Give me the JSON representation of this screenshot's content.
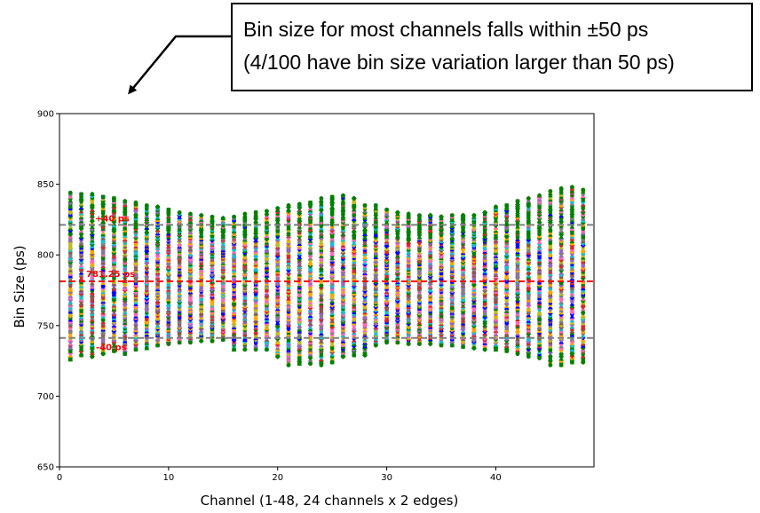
{
  "annotation": {
    "line1": "Bin size for most channels falls within ±50 ps",
    "line2": "(4/100 have bin size variation larger than 50 ps)"
  },
  "chart_data": {
    "type": "scatter",
    "title": "",
    "xlabel": "Channel (1-48, 24 channels x 2 edges)",
    "ylabel": "Bin Size (ps)",
    "xlim": [
      0,
      49
    ],
    "ylim": [
      650,
      900
    ],
    "xticks": [
      0,
      10,
      20,
      30,
      40
    ],
    "yticks": [
      650,
      700,
      750,
      800,
      850,
      900
    ],
    "grid": false,
    "legend": "none",
    "reference_lines": [
      {
        "label": "+40 ps",
        "y": 821.25,
        "color": "#808080",
        "style": "dashed"
      },
      {
        "label": "781.25 ps",
        "y": 781.25,
        "color": "#ff0000",
        "style": "dashed"
      },
      {
        "label": "-40 ps",
        "y": 741.25,
        "color": "#808080",
        "style": "dashed"
      }
    ],
    "channel_ranges": {
      "channels": [
        1,
        2,
        3,
        4,
        5,
        6,
        7,
        8,
        9,
        10,
        11,
        12,
        13,
        14,
        15,
        16,
        17,
        18,
        19,
        20,
        21,
        22,
        23,
        24,
        25,
        26,
        27,
        28,
        29,
        30,
        31,
        32,
        33,
        34,
        35,
        36,
        37,
        38,
        39,
        40,
        41,
        42,
        43,
        44,
        45,
        46,
        47,
        48
      ],
      "min": [
        726,
        729,
        728,
        730,
        732,
        730,
        733,
        734,
        736,
        737,
        738,
        738,
        739,
        739,
        740,
        733,
        733,
        733,
        733,
        728,
        722,
        723,
        723,
        722,
        724,
        728,
        729,
        729,
        736,
        738,
        738,
        737,
        737,
        737,
        736,
        736,
        735,
        734,
        733,
        733,
        732,
        730,
        728,
        727,
        722,
        722,
        724,
        724
      ],
      "max": [
        844,
        843,
        843,
        841,
        840,
        838,
        837,
        835,
        834,
        832,
        830,
        829,
        828,
        827,
        826,
        827,
        829,
        830,
        831,
        833,
        835,
        836,
        837,
        840,
        841,
        842,
        840,
        835,
        835,
        832,
        830,
        829,
        828,
        828,
        827,
        828,
        828,
        828,
        830,
        834,
        835,
        838,
        840,
        842,
        845,
        847,
        848,
        846
      ]
    },
    "series_colors": [
      "#008000",
      "#0000ff",
      "#808080",
      "#ffa500",
      "#17becf",
      "#ff69b4",
      "#9467bd",
      "#d62728",
      "#8c564b",
      "#bcbd22"
    ],
    "marker_shapes": [
      "circle",
      "square",
      "diamond",
      "triangle"
    ]
  }
}
